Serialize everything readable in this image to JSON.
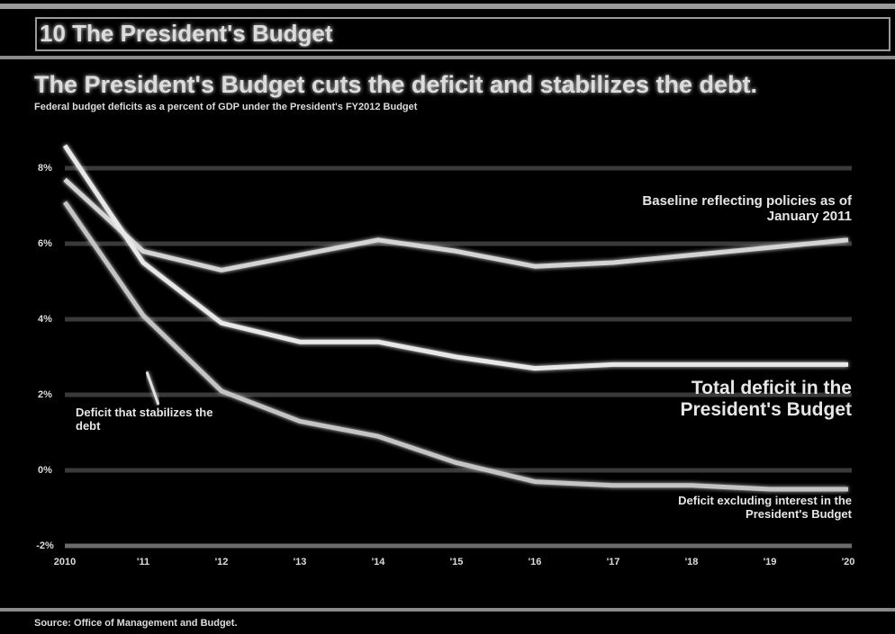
{
  "header": {
    "section": "10 The President's Budget"
  },
  "chart_data": {
    "type": "line",
    "title": "The President's Budget cuts the deficit and stabilizes the debt.",
    "subtitle": "Federal budget deficits as a percent of GDP under the President's FY2012 Budget",
    "categories": [
      "2010",
      "'11",
      "'12",
      "'13",
      "'14",
      "'15",
      "'16",
      "'17",
      "'18",
      "'19",
      "'20"
    ],
    "ylim": [
      -2,
      8
    ],
    "yticks": [
      {
        "value": -2,
        "label": "-2%"
      },
      {
        "value": 0,
        "label": "0%"
      },
      {
        "value": 2,
        "label": "2%"
      },
      {
        "value": 4,
        "label": "4%"
      },
      {
        "value": 6,
        "label": "6%"
      },
      {
        "value": 8,
        "label": "8%"
      }
    ],
    "grid": true,
    "series": [
      {
        "name": "Baseline reflecting policies as of January 2011",
        "color": "#d4d4d4",
        "values": [
          7.7,
          5.8,
          5.3,
          5.7,
          6.1,
          5.8,
          5.4,
          5.5,
          5.7,
          5.9,
          6.1
        ]
      },
      {
        "name": "Total deficit in the President's Budget",
        "color": "#e8e8e8",
        "values": [
          8.6,
          5.5,
          3.9,
          3.4,
          3.4,
          3.0,
          2.7,
          2.8,
          2.8,
          2.8,
          2.8
        ]
      },
      {
        "name": "Deficit excluding interest in the President's Budget",
        "color": "#c4c4c4",
        "values": [
          7.1,
          4.1,
          2.1,
          1.3,
          0.9,
          0.2,
          -0.3,
          -0.4,
          -0.4,
          -0.5,
          -0.5
        ]
      }
    ],
    "reference": {
      "label": "Deficit that stabilizes the debt",
      "value": 2.8,
      "color": "#e0e0e0"
    },
    "source": "Source: Office of Management and Budget."
  }
}
